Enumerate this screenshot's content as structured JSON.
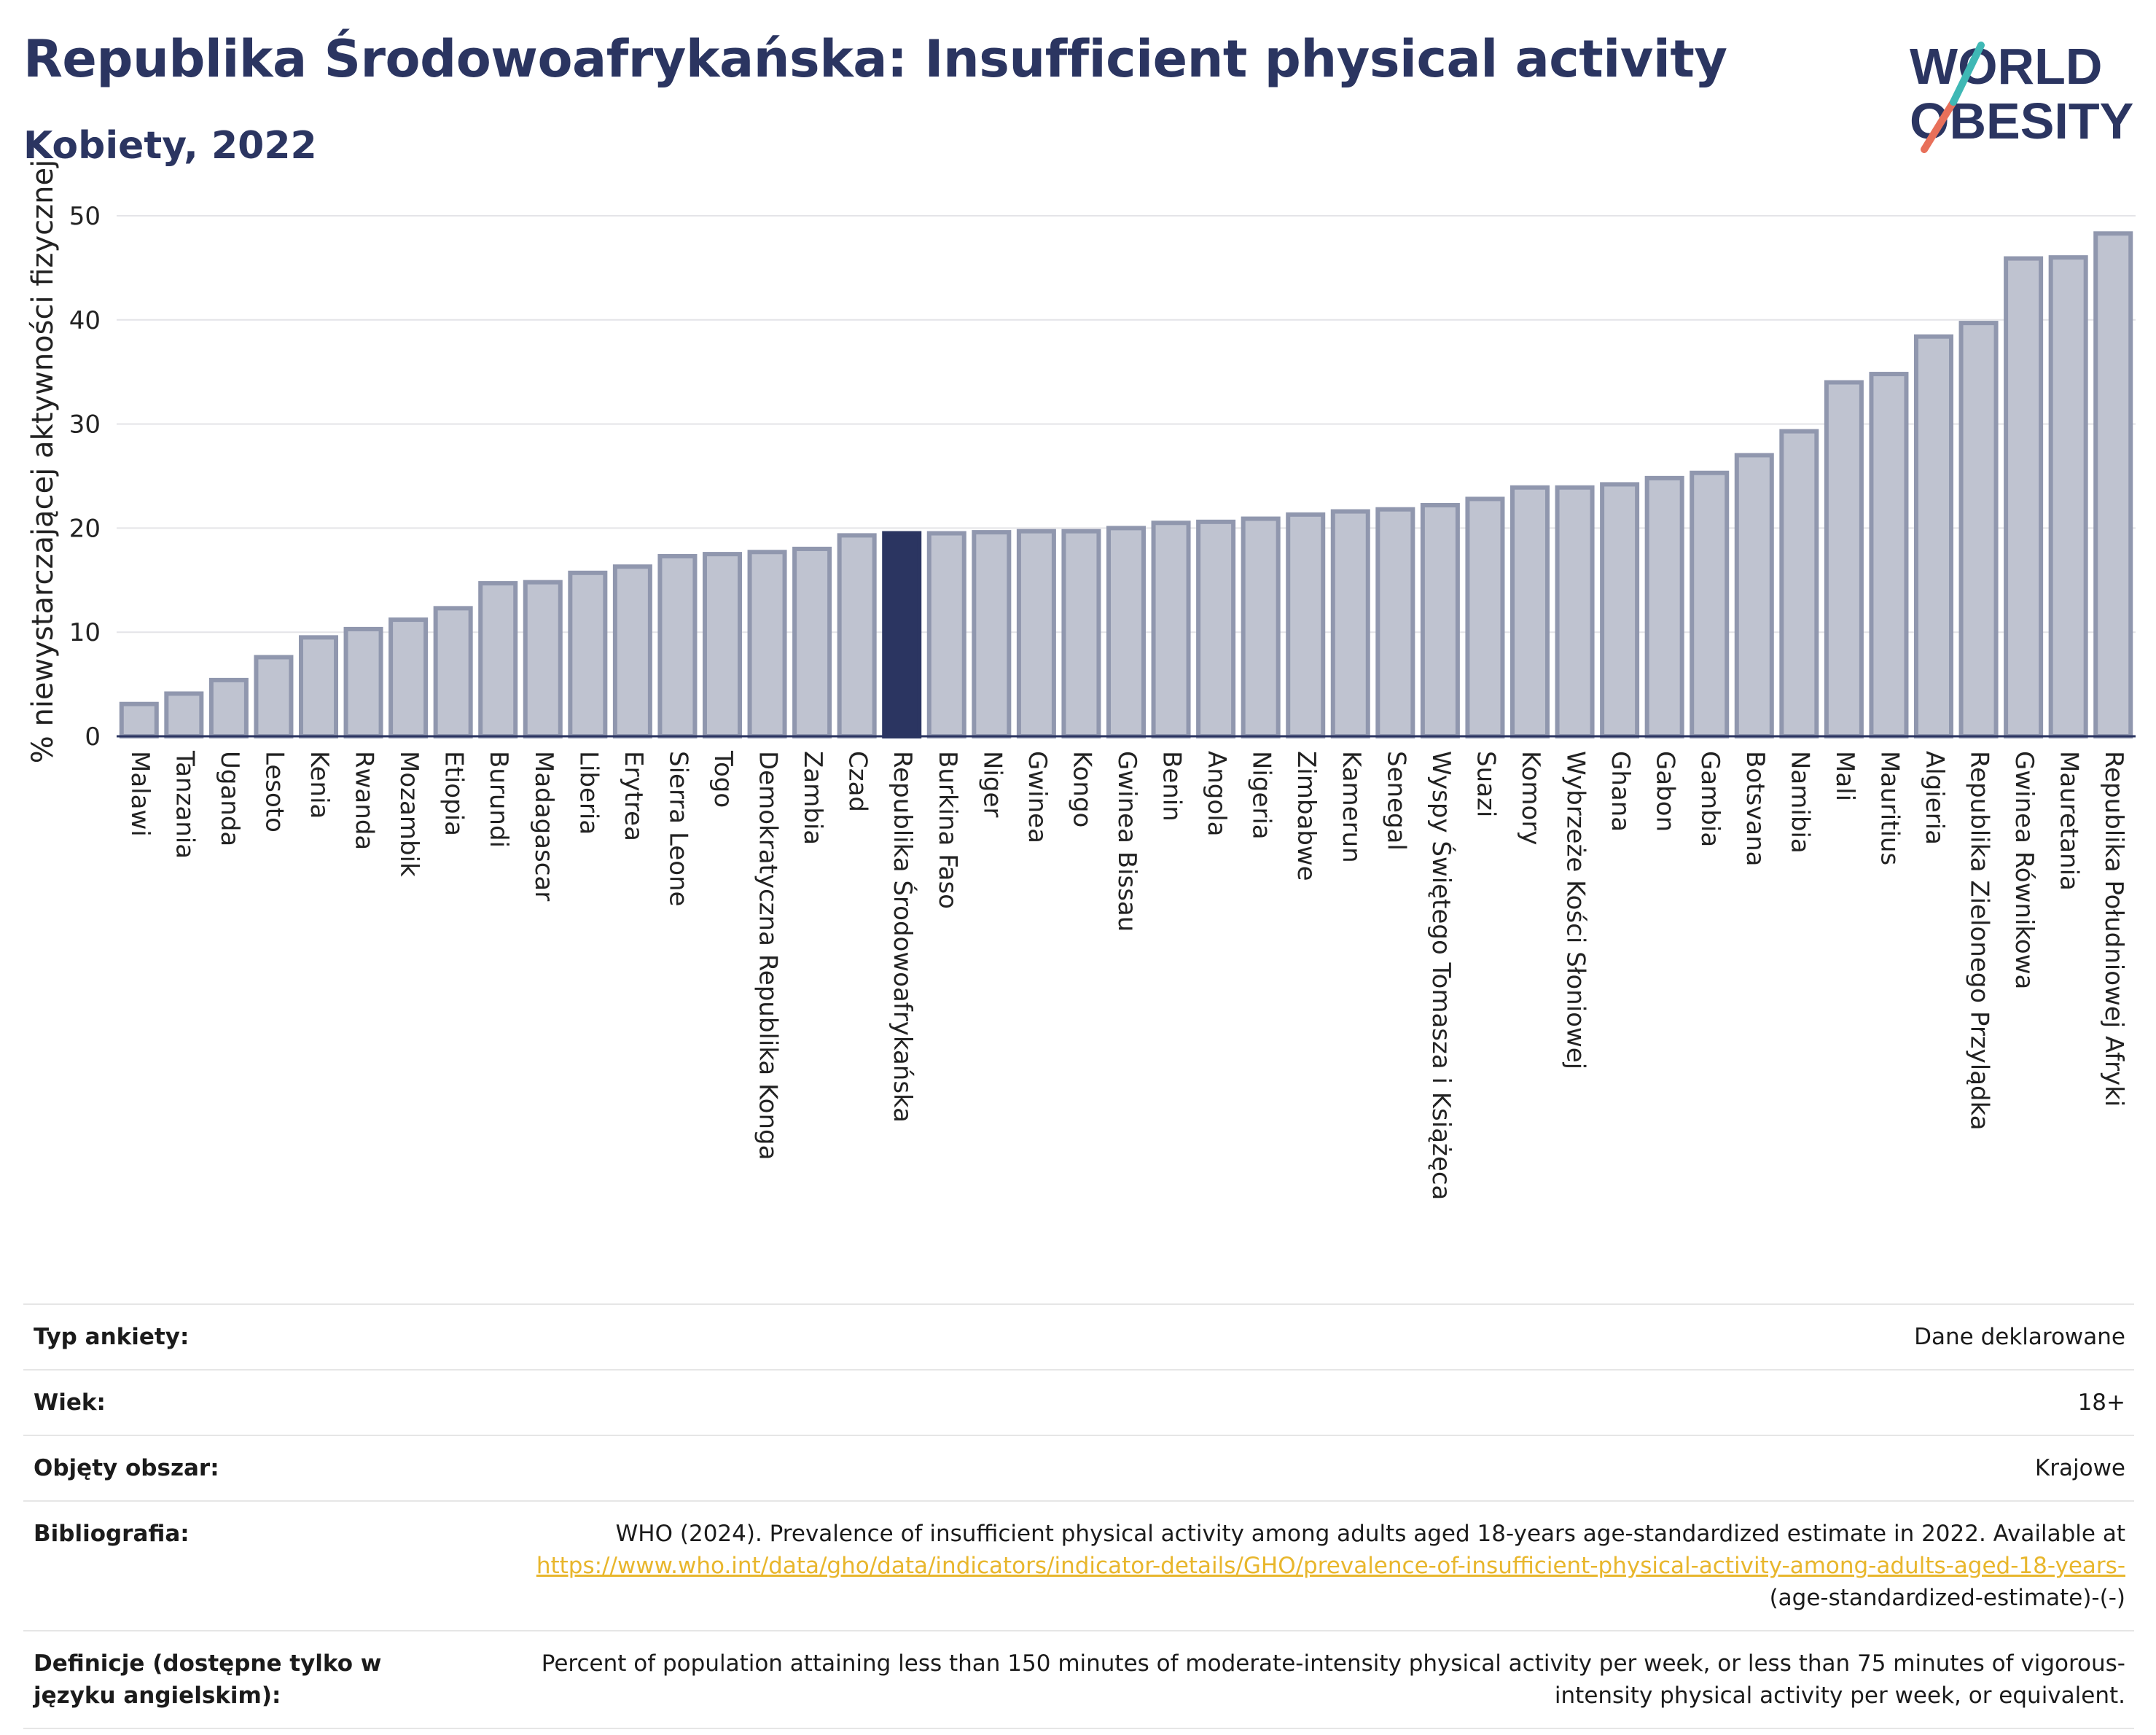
{
  "title": "Republika Środowoafrykańska: Insufficient physical activity",
  "subtitle": "Kobiety, 2022",
  "logo": {
    "line1": "WORLD",
    "line2": "OBESITY",
    "colors": [
      "#2b3561",
      "#3fb8b5",
      "#e8705a"
    ]
  },
  "colors": {
    "bar": "#bfc3d0",
    "bar_edge": "#9097ae",
    "highlight": "#2b3561",
    "grid": "#e4e4e8",
    "axis": "#2b3561"
  },
  "chart_data": {
    "type": "bar",
    "title": "Republika Środowoafrykańska: Insufficient physical activity",
    "xlabel": "",
    "ylabel": "% niewystarczającej aktywności fizycznej",
    "ylim": [
      0,
      50
    ],
    "yticks": [
      0,
      10,
      20,
      30,
      40,
      50
    ],
    "grid": true,
    "highlight": "Republika Środowoafrykańska",
    "categories": [
      "Malawi",
      "Tanzania",
      "Uganda",
      "Lesoto",
      "Kenia",
      "Rwanda",
      "Mozambik",
      "Etiopia",
      "Burundi",
      "Madagascar",
      "Liberia",
      "Erytrea",
      "Sierra Leone",
      "Togo",
      "Demokratyczna Republika Konga",
      "Zambia",
      "Czad",
      "Republika Środowoafrykańska",
      "Burkina Faso",
      "Niger",
      "Gwinea",
      "Kongo",
      "Gwinea Bissau",
      "Benin",
      "Angola",
      "Nigeria",
      "Zimbabwe",
      "Kamerun",
      "Senegal",
      "Wyspy Świętego Tomasza i Książęca",
      "Suazi",
      "Komory",
      "Wybrzeże Kości Słoniowej",
      "Ghana",
      "Gabon",
      "Gambia",
      "Botsvana",
      "Namibia",
      "Mali",
      "Mauritius",
      "Algieria",
      "Republika Zielonego Przylądka",
      "Gwinea Równikowa",
      "Mauretania",
      "Republika Południowej Afryki"
    ],
    "values": [
      3.1,
      4.1,
      5.4,
      7.6,
      9.5,
      10.3,
      11.2,
      12.3,
      14.7,
      14.8,
      15.7,
      16.3,
      17.3,
      17.5,
      17.7,
      18.0,
      19.3,
      19.5,
      19.5,
      19.6,
      19.7,
      19.7,
      20.0,
      20.5,
      20.6,
      20.9,
      21.3,
      21.6,
      21.8,
      22.2,
      22.8,
      23.9,
      23.9,
      24.2,
      24.8,
      25.3,
      27.0,
      29.3,
      34.0,
      34.8,
      38.4,
      39.7,
      45.9,
      46.0,
      48.3
    ]
  },
  "info": {
    "survey_label": "Typ ankiety:",
    "survey_value": "Dane deklarowane",
    "age_label": "Wiek:",
    "age_value": "18+",
    "area_label": "Objęty obszar:",
    "area_value": "Krajowe",
    "bib_label": "Bibliografia:",
    "bib_text": "WHO (2024). Prevalence of insufficient physical activity among adults aged 18-years age-standardized estimate in 2022. Available at",
    "bib_link": "https://www.who.int/data/gho/data/indicators/indicator-details/GHO/prevalence-of-insufficient-physical-activity-among-adults-aged-18-years-",
    "bib_suffix": "(age-standardized-estimate)-(-)",
    "def_label": "Definicje (dostępne tylko w języku angielskim):",
    "def_value": "Percent of population attaining less than 150 minutes of moderate-intensity physical activity per week, or less than 75 minutes of vigorous-intensity physical activity per week, or equivalent."
  }
}
